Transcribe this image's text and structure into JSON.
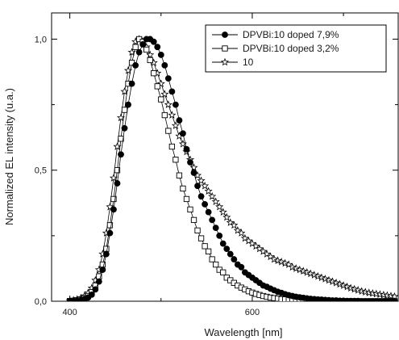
{
  "chart_data": {
    "type": "scatter",
    "xlabel": "Wavelength [nm]",
    "ylabel": "Normalized EL intensity (u.a.)",
    "xlim": [
      380,
      760
    ],
    "ylim": [
      0,
      1.1
    ],
    "x_ticks": [
      {
        "value": 400,
        "label": "400"
      },
      {
        "value": 600,
        "label": "600"
      }
    ],
    "y_ticks": [
      {
        "value": 0.0,
        "label": "0,0"
      },
      {
        "value": 0.5,
        "label": "0,5"
      },
      {
        "value": 1.0,
        "label": "1,0"
      }
    ],
    "legend_position": "top-right",
    "series": [
      {
        "name": "DPVBi:10 doped 7,9%",
        "marker": "filled-circle",
        "color": "#000000",
        "points": [
          [
            400,
            0.0
          ],
          [
            404,
            0.001
          ],
          [
            408,
            0.002
          ],
          [
            412,
            0.004
          ],
          [
            416,
            0.008
          ],
          [
            420,
            0.014
          ],
          [
            424,
            0.025
          ],
          [
            428,
            0.045
          ],
          [
            432,
            0.075
          ],
          [
            436,
            0.12
          ],
          [
            440,
            0.18
          ],
          [
            444,
            0.26
          ],
          [
            448,
            0.35
          ],
          [
            452,
            0.45
          ],
          [
            456,
            0.56
          ],
          [
            460,
            0.66
          ],
          [
            464,
            0.75
          ],
          [
            468,
            0.83
          ],
          [
            472,
            0.9
          ],
          [
            476,
            0.95
          ],
          [
            480,
            0.98
          ],
          [
            484,
            1.0
          ],
          [
            488,
            1.0
          ],
          [
            492,
            0.99
          ],
          [
            496,
            0.97
          ],
          [
            500,
            0.94
          ],
          [
            504,
            0.9
          ],
          [
            508,
            0.85
          ],
          [
            512,
            0.8
          ],
          [
            516,
            0.75
          ],
          [
            520,
            0.69
          ],
          [
            524,
            0.64
          ],
          [
            528,
            0.58
          ],
          [
            532,
            0.53
          ],
          [
            536,
            0.49
          ],
          [
            540,
            0.44
          ],
          [
            544,
            0.4
          ],
          [
            548,
            0.37
          ],
          [
            552,
            0.34
          ],
          [
            556,
            0.31
          ],
          [
            560,
            0.28
          ],
          [
            564,
            0.25
          ],
          [
            568,
            0.22
          ],
          [
            572,
            0.2
          ],
          [
            576,
            0.18
          ],
          [
            580,
            0.16
          ],
          [
            584,
            0.14
          ],
          [
            588,
            0.13
          ],
          [
            592,
            0.11
          ],
          [
            596,
            0.1
          ],
          [
            600,
            0.09
          ],
          [
            604,
            0.08
          ],
          [
            608,
            0.07
          ],
          [
            612,
            0.06
          ],
          [
            616,
            0.055
          ],
          [
            620,
            0.048
          ],
          [
            624,
            0.042
          ],
          [
            628,
            0.036
          ],
          [
            632,
            0.032
          ],
          [
            636,
            0.027
          ],
          [
            640,
            0.023
          ],
          [
            644,
            0.02
          ],
          [
            648,
            0.017
          ],
          [
            652,
            0.015
          ],
          [
            656,
            0.013
          ],
          [
            660,
            0.011
          ],
          [
            664,
            0.009
          ],
          [
            668,
            0.008
          ],
          [
            672,
            0.007
          ],
          [
            676,
            0.006
          ],
          [
            680,
            0.005
          ],
          [
            684,
            0.004
          ],
          [
            688,
            0.003
          ],
          [
            692,
            0.003
          ],
          [
            696,
            0.002
          ],
          [
            700,
            0.002
          ],
          [
            704,
            0.001
          ],
          [
            708,
            0.001
          ],
          [
            712,
            0.001
          ],
          [
            716,
            0.001
          ],
          [
            720,
            0.0
          ],
          [
            724,
            0.0
          ],
          [
            728,
            0.0
          ],
          [
            732,
            0.0
          ],
          [
            736,
            0.0
          ],
          [
            740,
            0.0
          ],
          [
            744,
            0.0
          ],
          [
            748,
            0.0
          ],
          [
            752,
            0.0
          ],
          [
            756,
            0.0
          ]
        ]
      },
      {
        "name": "DPVBi:10 doped 3,2%",
        "marker": "open-square",
        "color": "#000000",
        "points": [
          [
            400,
            0.001
          ],
          [
            404,
            0.002
          ],
          [
            408,
            0.004
          ],
          [
            412,
            0.007
          ],
          [
            416,
            0.012
          ],
          [
            420,
            0.02
          ],
          [
            424,
            0.035
          ],
          [
            428,
            0.06
          ],
          [
            432,
            0.095
          ],
          [
            436,
            0.14
          ],
          [
            440,
            0.2
          ],
          [
            444,
            0.29
          ],
          [
            448,
            0.39
          ],
          [
            452,
            0.5
          ],
          [
            456,
            0.62
          ],
          [
            460,
            0.73
          ],
          [
            464,
            0.83
          ],
          [
            468,
            0.91
          ],
          [
            472,
            0.97
          ],
          [
            476,
            1.0
          ],
          [
            480,
            0.99
          ],
          [
            484,
            0.96
          ],
          [
            488,
            0.92
          ],
          [
            492,
            0.87
          ],
          [
            496,
            0.82
          ],
          [
            500,
            0.77
          ],
          [
            504,
            0.71
          ],
          [
            508,
            0.65
          ],
          [
            512,
            0.59
          ],
          [
            516,
            0.54
          ],
          [
            520,
            0.48
          ],
          [
            524,
            0.43
          ],
          [
            528,
            0.39
          ],
          [
            532,
            0.35
          ],
          [
            536,
            0.31
          ],
          [
            540,
            0.27
          ],
          [
            544,
            0.24
          ],
          [
            548,
            0.21
          ],
          [
            552,
            0.19
          ],
          [
            556,
            0.16
          ],
          [
            560,
            0.14
          ],
          [
            564,
            0.12
          ],
          [
            568,
            0.11
          ],
          [
            572,
            0.09
          ],
          [
            576,
            0.08
          ],
          [
            580,
            0.07
          ],
          [
            584,
            0.06
          ],
          [
            588,
            0.052
          ],
          [
            592,
            0.045
          ],
          [
            596,
            0.038
          ],
          [
            600,
            0.033
          ],
          [
            604,
            0.028
          ],
          [
            608,
            0.024
          ],
          [
            612,
            0.02
          ],
          [
            616,
            0.017
          ],
          [
            620,
            0.014
          ],
          [
            624,
            0.012
          ],
          [
            628,
            0.01
          ],
          [
            632,
            0.008
          ],
          [
            636,
            0.007
          ],
          [
            640,
            0.006
          ],
          [
            644,
            0.005
          ],
          [
            648,
            0.004
          ],
          [
            652,
            0.003
          ],
          [
            656,
            0.003
          ],
          [
            660,
            0.002
          ],
          [
            664,
            0.002
          ],
          [
            668,
            0.001
          ],
          [
            672,
            0.001
          ],
          [
            676,
            0.001
          ],
          [
            680,
            0.001
          ],
          [
            684,
            0.0
          ],
          [
            688,
            0.0
          ],
          [
            692,
            0.0
          ],
          [
            696,
            0.0
          ],
          [
            700,
            0.0
          ],
          [
            704,
            0.0
          ],
          [
            708,
            0.0
          ],
          [
            712,
            0.0
          ],
          [
            716,
            0.0
          ],
          [
            720,
            0.0
          ],
          [
            724,
            0.0
          ],
          [
            728,
            0.0
          ],
          [
            732,
            0.0
          ],
          [
            736,
            0.0
          ],
          [
            740,
            0.0
          ],
          [
            744,
            0.0
          ],
          [
            748,
            0.0
          ],
          [
            752,
            0.0
          ],
          [
            756,
            0.0
          ]
        ]
      },
      {
        "name": "10",
        "marker": "open-star",
        "color": "#000000",
        "points": [
          [
            400,
            0.002
          ],
          [
            404,
            0.004
          ],
          [
            408,
            0.007
          ],
          [
            412,
            0.012
          ],
          [
            416,
            0.02
          ],
          [
            420,
            0.032
          ],
          [
            424,
            0.05
          ],
          [
            428,
            0.08
          ],
          [
            432,
            0.12
          ],
          [
            436,
            0.18
          ],
          [
            440,
            0.26
          ],
          [
            444,
            0.36
          ],
          [
            448,
            0.47
          ],
          [
            452,
            0.59
          ],
          [
            456,
            0.7
          ],
          [
            460,
            0.8
          ],
          [
            464,
            0.88
          ],
          [
            468,
            0.95
          ],
          [
            472,
            0.99
          ],
          [
            476,
            1.0
          ],
          [
            480,
            0.99
          ],
          [
            484,
            0.97
          ],
          [
            488,
            0.94
          ],
          [
            492,
            0.91
          ],
          [
            496,
            0.87
          ],
          [
            500,
            0.83
          ],
          [
            504,
            0.79
          ],
          [
            508,
            0.75
          ],
          [
            512,
            0.71
          ],
          [
            516,
            0.67
          ],
          [
            520,
            0.63
          ],
          [
            524,
            0.6
          ],
          [
            528,
            0.57
          ],
          [
            532,
            0.54
          ],
          [
            536,
            0.51
          ],
          [
            540,
            0.48
          ],
          [
            544,
            0.46
          ],
          [
            548,
            0.44
          ],
          [
            552,
            0.42
          ],
          [
            556,
            0.4
          ],
          [
            560,
            0.38
          ],
          [
            564,
            0.36
          ],
          [
            568,
            0.34
          ],
          [
            572,
            0.32
          ],
          [
            576,
            0.3
          ],
          [
            580,
            0.29
          ],
          [
            584,
            0.27
          ],
          [
            588,
            0.26
          ],
          [
            592,
            0.24
          ],
          [
            596,
            0.23
          ],
          [
            600,
            0.22
          ],
          [
            604,
            0.21
          ],
          [
            608,
            0.2
          ],
          [
            612,
            0.19
          ],
          [
            616,
            0.18
          ],
          [
            620,
            0.17
          ],
          [
            624,
            0.16
          ],
          [
            628,
            0.155
          ],
          [
            632,
            0.15
          ],
          [
            636,
            0.145
          ],
          [
            640,
            0.14
          ],
          [
            644,
            0.13
          ],
          [
            648,
            0.125
          ],
          [
            652,
            0.12
          ],
          [
            656,
            0.115
          ],
          [
            660,
            0.11
          ],
          [
            664,
            0.105
          ],
          [
            668,
            0.1
          ],
          [
            672,
            0.095
          ],
          [
            676,
            0.09
          ],
          [
            680,
            0.085
          ],
          [
            684,
            0.08
          ],
          [
            688,
            0.075
          ],
          [
            692,
            0.07
          ],
          [
            696,
            0.065
          ],
          [
            700,
            0.06
          ],
          [
            704,
            0.055
          ],
          [
            708,
            0.05
          ],
          [
            712,
            0.046
          ],
          [
            716,
            0.042
          ],
          [
            720,
            0.038
          ],
          [
            724,
            0.035
          ],
          [
            728,
            0.032
          ],
          [
            732,
            0.03
          ],
          [
            736,
            0.028
          ],
          [
            740,
            0.026
          ],
          [
            744,
            0.024
          ],
          [
            748,
            0.022
          ],
          [
            752,
            0.02
          ],
          [
            756,
            0.018
          ]
        ]
      }
    ]
  }
}
